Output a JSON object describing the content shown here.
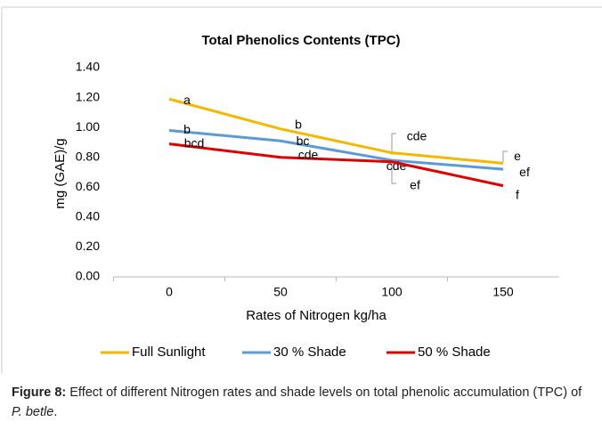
{
  "chart_data": {
    "type": "line",
    "title": "Total Phenolics Contents (TPC)",
    "x_label": "Rates of Nitrogen kg/ha",
    "y_label": "mg (GAE)/g",
    "categories": [
      "0",
      "50",
      "100",
      "150"
    ],
    "ylim": [
      0,
      1.4
    ],
    "yticks": [
      {
        "value": 0,
        "label": "0.00"
      },
      {
        "value": 0.2,
        "label": "0.20"
      },
      {
        "value": 0.4,
        "label": "0.40"
      },
      {
        "value": 0.6,
        "label": "0.60"
      },
      {
        "value": 0.8,
        "label": "0.80"
      },
      {
        "value": 1.0,
        "label": "1.00"
      },
      {
        "value": 1.2,
        "label": "1.20"
      },
      {
        "value": 1.4,
        "label": "1.40"
      }
    ],
    "grid": false,
    "legend": "bottom",
    "series": [
      {
        "name": "Full Sunlight",
        "color": "#f5b800",
        "values": [
          1.19,
          0.99,
          0.83,
          0.76
        ],
        "point_labels": [
          "a",
          "b",
          "cde",
          "e"
        ]
      },
      {
        "name": "30 % Shade",
        "color": "#5b9bd5",
        "values": [
          0.98,
          0.91,
          0.78,
          0.72
        ],
        "point_labels": [
          "b",
          "bc",
          "cde",
          "ef"
        ]
      },
      {
        "name": "50 % Shade",
        "color": "#e00000",
        "values": [
          0.89,
          0.8,
          0.77,
          0.61
        ],
        "point_labels": [
          "bcd",
          "cde",
          "ef",
          "f"
        ]
      }
    ]
  },
  "caption": {
    "label": "Figure 8:",
    "text": " Effect of different Nitrogen rates and shade levels on total phenolic accumulation (TPC) of ",
    "species": "P. betle",
    "end": "."
  }
}
